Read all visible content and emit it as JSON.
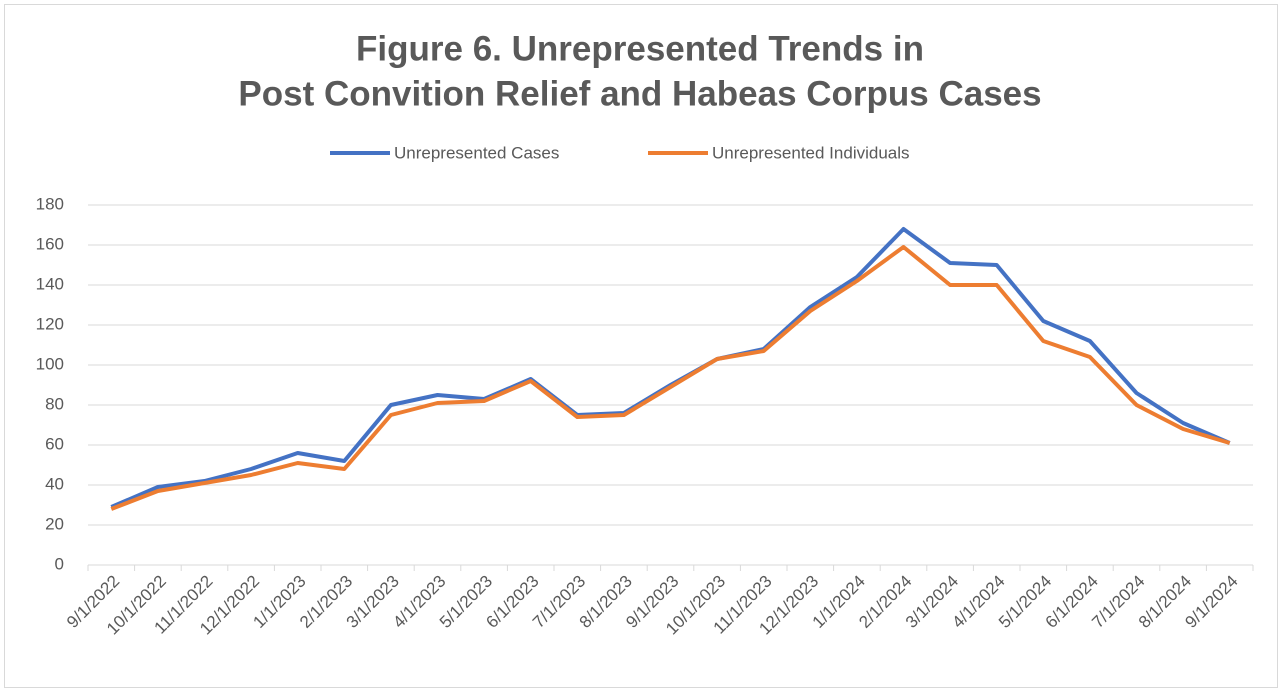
{
  "chart_data": {
    "type": "line",
    "title": [
      "Figure 6. Unrepresented Trends in",
      "Post Convition Relief and Habeas Corpus Cases"
    ],
    "categories": [
      "9/1/2022",
      "10/1/2022",
      "11/1/2022",
      "12/1/2022",
      "1/1/2023",
      "2/1/2023",
      "3/1/2023",
      "4/1/2023",
      "5/1/2023",
      "6/1/2023",
      "7/1/2023",
      "8/1/2023",
      "9/1/2023",
      "10/1/2023",
      "11/1/2023",
      "12/1/2023",
      "1/1/2024",
      "2/1/2024",
      "3/1/2024",
      "4/1/2024",
      "5/1/2024",
      "6/1/2024",
      "7/1/2024",
      "8/1/2024",
      "9/1/2024"
    ],
    "series": [
      {
        "name": "Unrepresented Cases",
        "color": "#4472c4",
        "values": [
          29,
          39,
          42,
          48,
          56,
          52,
          80,
          85,
          83,
          93,
          75,
          76,
          90,
          103,
          108,
          129,
          144,
          168,
          151,
          150,
          122,
          112,
          86,
          71,
          61
        ]
      },
      {
        "name": "Unrepresented Individuals",
        "color": "#ed7d31",
        "values": [
          28,
          37,
          41,
          45,
          51,
          48,
          75,
          81,
          82,
          92,
          74,
          75,
          89,
          103,
          107,
          127,
          142,
          159,
          140,
          140,
          112,
          104,
          80,
          68,
          61
        ]
      }
    ],
    "ylim": [
      0,
      180
    ],
    "yticks": [
      0,
      20,
      40,
      60,
      80,
      100,
      120,
      140,
      160,
      180
    ],
    "grid": true,
    "legend": "top"
  }
}
